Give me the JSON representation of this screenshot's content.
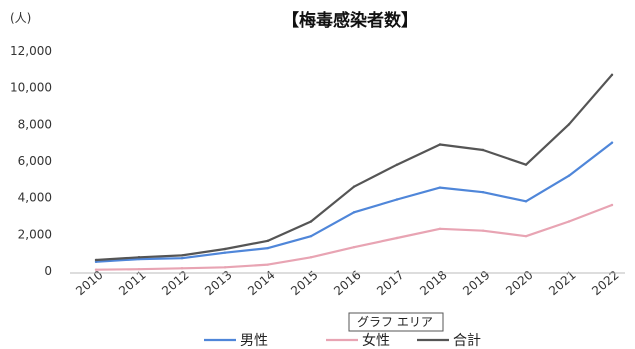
{
  "chart_data": {
    "type": "line",
    "title": "【梅毒感染者数】",
    "unit_label": "(人)",
    "categories": [
      "2010",
      "2011",
      "2012",
      "2013",
      "2014",
      "2015",
      "2016",
      "2017",
      "2018",
      "2019",
      "2020",
      "2021",
      "2022"
    ],
    "ylim": [
      0,
      12000
    ],
    "yticks": [
      "0",
      "2,000",
      "4,000",
      "6,000",
      "8,000",
      "10,000",
      "12,000"
    ],
    "ytick_values": [
      0,
      2000,
      4000,
      6000,
      8000,
      10000,
      12000
    ],
    "grid": false,
    "legend_position": "bottom",
    "series": [
      {
        "name": "男性",
        "color": "#4f86d9",
        "values": [
          500,
          650,
          700,
          1000,
          1250,
          1900,
          3200,
          3900,
          4550,
          4300,
          3800,
          5200,
          7000
        ]
      },
      {
        "name": "女性",
        "color": "#e8a4b3",
        "values": [
          70,
          100,
          150,
          200,
          350,
          750,
          1300,
          1800,
          2300,
          2200,
          1900,
          2700,
          3600
        ]
      },
      {
        "name": "合計",
        "color": "#555555",
        "values": [
          600,
          750,
          850,
          1200,
          1650,
          2700,
          4600,
          5800,
          6900,
          6600,
          5800,
          8000,
          10700
        ]
      }
    ]
  },
  "tooltip": {
    "text": "グラフ エリア"
  }
}
